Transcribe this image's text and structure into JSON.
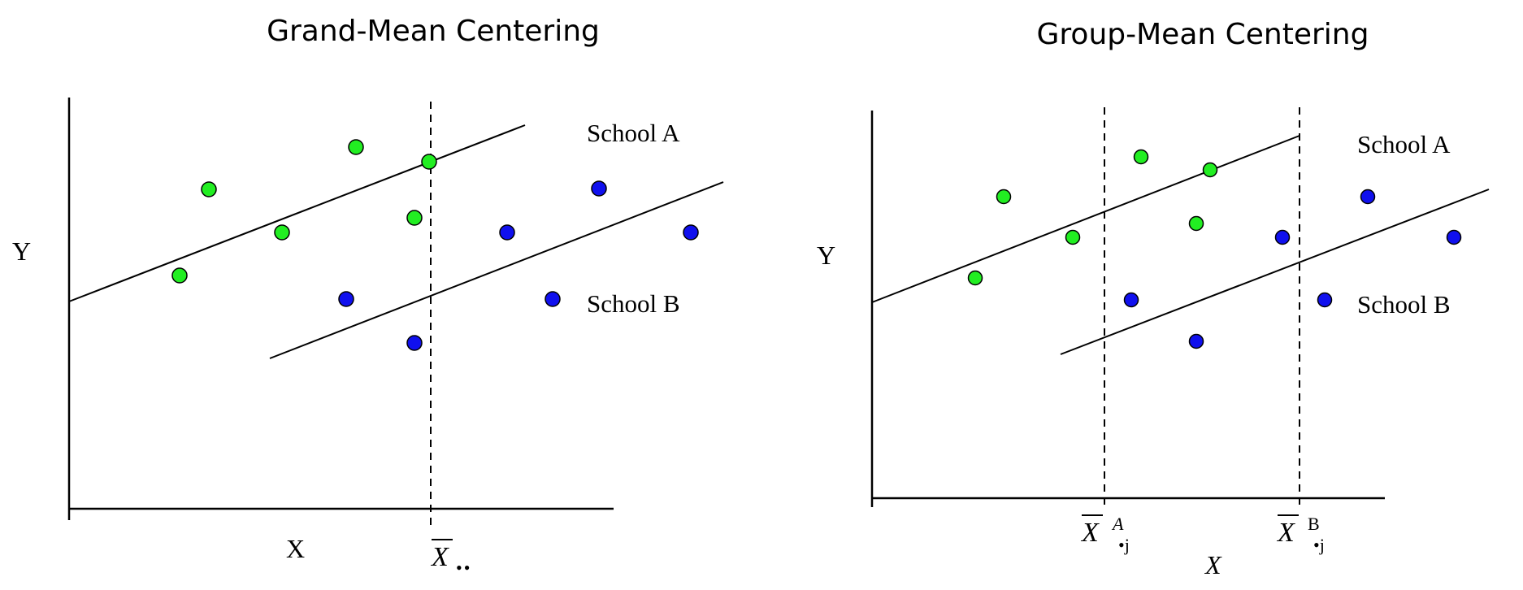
{
  "panels": [
    {
      "title": "Grand-Mean Centering",
      "y_label": "Y",
      "x_label": "X",
      "mean_label": "X",
      "mean_sub": "••",
      "group_a_label": "School A",
      "group_b_label": "School B",
      "group_a_color": "#22ee22",
      "group_b_color": "#1010ee"
    },
    {
      "title": "Group-Mean Centering",
      "y_label": "Y",
      "x_label": "X",
      "mean_a_label": "X",
      "mean_a_sup": "A",
      "mean_a_sub": "•j",
      "mean_b_label": "X",
      "mean_b_sup": "B",
      "mean_b_sub": "•j",
      "group_a_label": "School A",
      "group_b_label": "School B",
      "group_a_color": "#22ee22",
      "group_b_color": "#1010ee"
    }
  ]
}
